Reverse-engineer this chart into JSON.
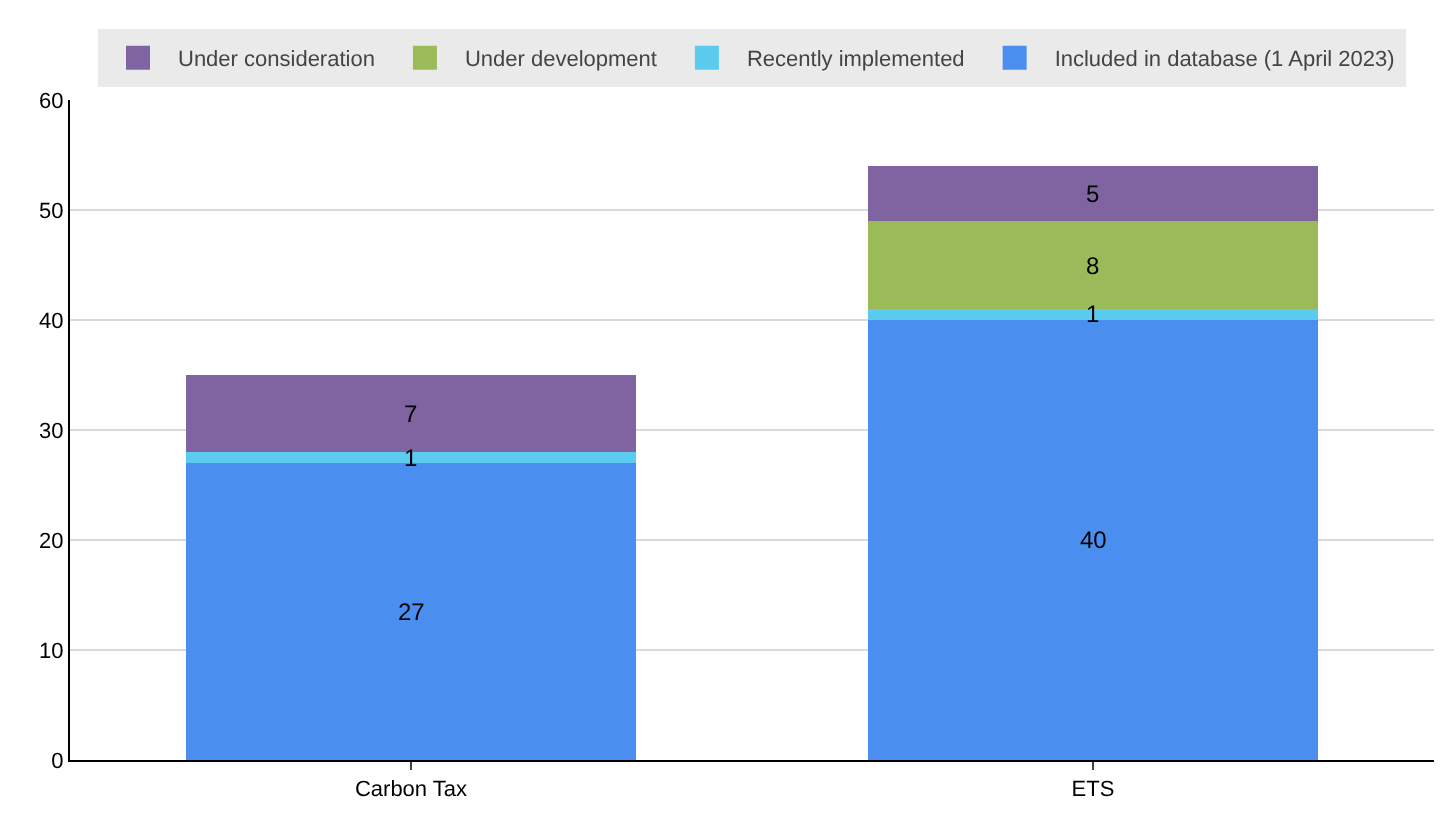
{
  "chart_data": {
    "type": "bar",
    "stacked": true,
    "categories": [
      "Carbon Tax",
      "ETS"
    ],
    "series": [
      {
        "name": "Included in database (1 April 2023)",
        "color": "#4a8ff0",
        "values": [
          27,
          40
        ],
        "value_labels": [
          "27",
          "40"
        ]
      },
      {
        "name": "Recently implemented",
        "color": "#5ccbf0",
        "values": [
          1,
          1
        ],
        "value_labels": [
          "1",
          "1"
        ]
      },
      {
        "name": "Under development",
        "color": "#9bbb59",
        "values": [
          0,
          8
        ],
        "value_labels": [
          null,
          "8"
        ]
      },
      {
        "name": "Under consideration",
        "color": "#8064a2",
        "values": [
          7,
          5
        ],
        "value_labels": [
          "7",
          "5"
        ]
      }
    ],
    "ylim": [
      0,
      60
    ],
    "yticks": [
      0,
      10,
      20,
      30,
      40,
      50,
      60
    ],
    "grid": "y",
    "legend": "top"
  }
}
